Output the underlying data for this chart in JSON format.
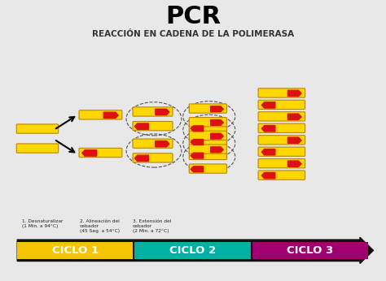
{
  "title": "PCR",
  "subtitle": "REACCIÓN EN CADENA DE LA POLIMERASA",
  "bg_color": "#e8e8e8",
  "border_color": "#888888",
  "dna_color": "#FFD700",
  "dna_edge": "#B8860B",
  "primer_color": "#DD1111",
  "cycle_colors": [
    "#F5C400",
    "#00B0A0",
    "#A0006E"
  ],
  "cycle_labels": [
    "CICLO 1",
    "CICLO 2",
    "CICLO 3"
  ],
  "step_labels": [
    "1. Desnaturalizar\n(1 Min. a 94°C)",
    "2. Alineación del\ncebador\n(45 Seg. a 54°C)",
    "3. Extensión del\ncebador\n(2 Min. a 72°C)"
  ]
}
